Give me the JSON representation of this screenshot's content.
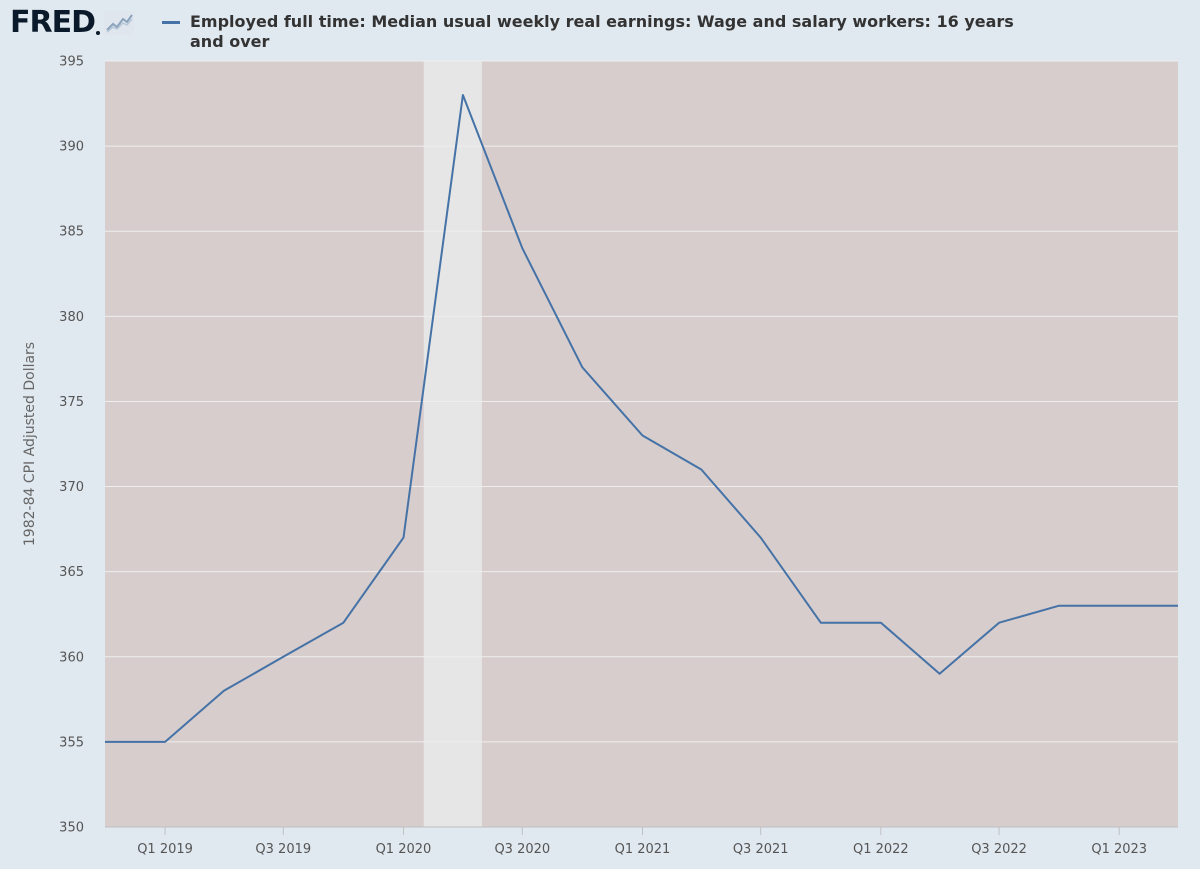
{
  "header": {
    "logo_text": "FRED",
    "logo_icon": "line-chart-icon"
  },
  "colors": {
    "page_background": "#e1e9f0",
    "plot_background": "#d7cdcc",
    "recession_band": "#e6e6e6",
    "series_line": "#4572a7",
    "gridline": "#eeeeee"
  },
  "chart_data": {
    "type": "line",
    "legend_position": "top-left",
    "grid": true,
    "ylabel": "1982-84 CPI Adjusted Dollars",
    "xlabel": "",
    "ylim": [
      350,
      395
    ],
    "y_ticks": [
      350,
      355,
      360,
      365,
      370,
      375,
      380,
      385,
      390,
      395
    ],
    "x_range": [
      "2018-10-01",
      "2023-04-01"
    ],
    "x_ticks": [
      {
        "date": "2019-01-01",
        "label": "Q1 2019"
      },
      {
        "date": "2019-07-01",
        "label": "Q3 2019"
      },
      {
        "date": "2020-01-01",
        "label": "Q1 2020"
      },
      {
        "date": "2020-07-01",
        "label": "Q3 2020"
      },
      {
        "date": "2021-01-01",
        "label": "Q1 2021"
      },
      {
        "date": "2021-07-01",
        "label": "Q3 2021"
      },
      {
        "date": "2022-01-01",
        "label": "Q1 2022"
      },
      {
        "date": "2022-07-01",
        "label": "Q3 2022"
      },
      {
        "date": "2023-01-01",
        "label": "Q1 2023"
      }
    ],
    "recession_shading": {
      "start": "2020-02-01",
      "end": "2020-04-30"
    },
    "series": [
      {
        "name": "Employed full time: Median usual weekly real earnings: Wage and salary workers: 16 years and over",
        "color": "#4572a7",
        "x": [
          "2018-10-01",
          "2019-01-01",
          "2019-04-01",
          "2019-07-01",
          "2019-10-01",
          "2020-01-01",
          "2020-04-01",
          "2020-07-01",
          "2020-10-01",
          "2021-01-01",
          "2021-04-01",
          "2021-07-01",
          "2021-10-01",
          "2022-01-01",
          "2022-04-01",
          "2022-07-01",
          "2022-10-01",
          "2023-01-01"
        ],
        "values": [
          355,
          355,
          358,
          360,
          362,
          367,
          393,
          384,
          377,
          373,
          371,
          367,
          362,
          362,
          359,
          362,
          363,
          363
        ]
      }
    ]
  }
}
